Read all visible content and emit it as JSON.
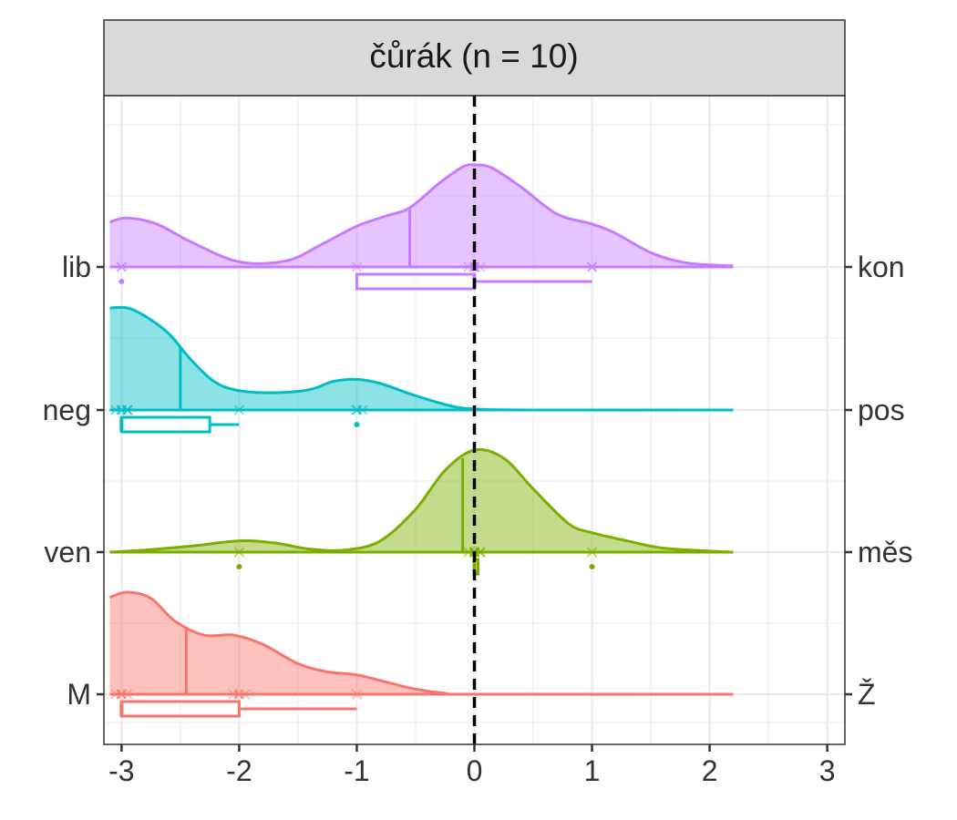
{
  "chart_data": {
    "type": "raincloud",
    "title": "čůrák (n = 10)",
    "xlim": [
      -3.15,
      3.15
    ],
    "x_ticks": [
      -3,
      -2,
      -1,
      0,
      1,
      2,
      3
    ],
    "x_tick_labels": [
      "-3",
      "-2",
      "-1",
      "0",
      "1",
      "2",
      "3"
    ],
    "reference_line_x": 0,
    "grid": true,
    "kde_range": [
      -3.1,
      2.2
    ],
    "rows": [
      {
        "left_label": "lib",
        "right_label": "kon",
        "color": "#C77CFF",
        "median_line": -0.55,
        "density": [
          [
            -3.1,
            0.44
          ],
          [
            -2.95,
            0.48
          ],
          [
            -2.7,
            0.42
          ],
          [
            -2.4,
            0.24
          ],
          [
            -2.0,
            0.05
          ],
          [
            -1.6,
            0.06
          ],
          [
            -1.3,
            0.22
          ],
          [
            -1.0,
            0.4
          ],
          [
            -0.75,
            0.5
          ],
          [
            -0.55,
            0.58
          ],
          [
            -0.3,
            0.82
          ],
          [
            -0.1,
            0.98
          ],
          [
            0.0,
            1.0
          ],
          [
            0.15,
            0.97
          ],
          [
            0.4,
            0.78
          ],
          [
            0.7,
            0.52
          ],
          [
            1.0,
            0.42
          ],
          [
            1.2,
            0.33
          ],
          [
            1.5,
            0.14
          ],
          [
            1.8,
            0.04
          ],
          [
            2.2,
            0.01
          ]
        ],
        "points": [
          -3.0,
          -3.0,
          -1.0,
          -0.05,
          0.0,
          0.0,
          0.0,
          0.05,
          1.0,
          1.0
        ],
        "box": {
          "q1": -1.0,
          "median": 0.0,
          "q3": 0.0,
          "whisker_low": -1.0,
          "whisker_high": 1.0
        },
        "outliers": [
          -3.0
        ]
      },
      {
        "left_label": "neg",
        "right_label": "pos",
        "color": "#00BFC4",
        "median_line": -2.5,
        "density": [
          [
            -3.1,
            1.0
          ],
          [
            -2.95,
            1.0
          ],
          [
            -2.8,
            0.92
          ],
          [
            -2.6,
            0.75
          ],
          [
            -2.4,
            0.48
          ],
          [
            -2.2,
            0.27
          ],
          [
            -2.0,
            0.19
          ],
          [
            -1.7,
            0.17
          ],
          [
            -1.4,
            0.2
          ],
          [
            -1.2,
            0.28
          ],
          [
            -1.0,
            0.3
          ],
          [
            -0.8,
            0.26
          ],
          [
            -0.5,
            0.14
          ],
          [
            -0.2,
            0.04
          ],
          [
            0.0,
            0.01
          ],
          [
            0.5,
            0.0
          ],
          [
            2.2,
            0.0
          ]
        ],
        "points": [
          -3.05,
          -3.0,
          -3.0,
          -2.95,
          -2.95,
          -2.95,
          -2.0,
          -1.0,
          -1.0,
          -0.95
        ],
        "box": {
          "q1": -3.0,
          "median": -3.0,
          "q3": -2.25,
          "whisker_low": -3.0,
          "whisker_high": -2.0
        },
        "outliers": [
          -1.0
        ]
      },
      {
        "left_label": "ven",
        "right_label": "měs",
        "color": "#7CAE00",
        "median_line": -0.1,
        "density": [
          [
            -3.1,
            0.0
          ],
          [
            -2.8,
            0.02
          ],
          [
            -2.4,
            0.06
          ],
          [
            -2.0,
            0.11
          ],
          [
            -1.7,
            0.09
          ],
          [
            -1.4,
            0.03
          ],
          [
            -1.1,
            0.02
          ],
          [
            -0.8,
            0.11
          ],
          [
            -0.5,
            0.42
          ],
          [
            -0.25,
            0.8
          ],
          [
            0.0,
            1.0
          ],
          [
            0.25,
            0.92
          ],
          [
            0.5,
            0.62
          ],
          [
            0.8,
            0.28
          ],
          [
            1.0,
            0.19
          ],
          [
            1.3,
            0.11
          ],
          [
            1.6,
            0.04
          ],
          [
            2.0,
            0.01
          ],
          [
            2.2,
            0.0
          ]
        ],
        "points": [
          -2.0,
          -0.05,
          0.0,
          0.0,
          0.0,
          0.0,
          0.0,
          0.05,
          0.05,
          1.0
        ],
        "box": {
          "q1": 0.0,
          "median": 0.0,
          "q3": 0.0,
          "whisker_low": 0.0,
          "whisker_high": 0.0
        },
        "outliers": [
          -2.0,
          1.0
        ]
      },
      {
        "left_label": "M",
        "right_label": "Ž",
        "color": "#F8766D",
        "median_line": -2.45,
        "density": [
          [
            -3.1,
            0.95
          ],
          [
            -2.95,
            1.0
          ],
          [
            -2.75,
            0.94
          ],
          [
            -2.55,
            0.72
          ],
          [
            -2.3,
            0.58
          ],
          [
            -2.05,
            0.58
          ],
          [
            -1.8,
            0.49
          ],
          [
            -1.5,
            0.3
          ],
          [
            -1.25,
            0.22
          ],
          [
            -1.0,
            0.19
          ],
          [
            -0.75,
            0.12
          ],
          [
            -0.5,
            0.05
          ],
          [
            -0.25,
            0.01
          ],
          [
            0.0,
            0.0
          ],
          [
            2.2,
            0.0
          ]
        ],
        "points": [
          -3.05,
          -3.0,
          -3.0,
          -3.0,
          -2.95,
          -2.05,
          -2.0,
          -2.0,
          -1.95,
          -1.0
        ],
        "box": {
          "q1": -3.0,
          "median": -3.0,
          "q3": -2.0,
          "whisker_low": -3.0,
          "whisker_high": -1.0
        },
        "outliers": []
      }
    ]
  }
}
